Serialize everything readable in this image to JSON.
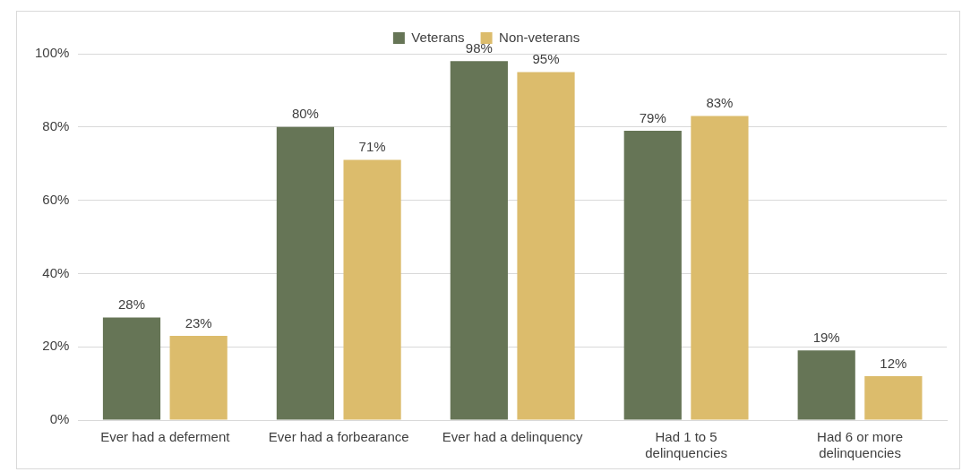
{
  "chart_data": {
    "type": "bar",
    "categories": [
      "Ever had a deferment",
      "Ever had a forbearance",
      "Ever had a delinquency",
      "Had 1 to 5 delinquencies",
      "Had 6 or more delinquencies"
    ],
    "series": [
      {
        "name": "Veterans",
        "color": "#667556",
        "values": [
          28,
          80,
          98,
          79,
          19
        ]
      },
      {
        "name": "Non-veterans",
        "color": "#dcbc6c",
        "values": [
          23,
          71,
          95,
          83,
          12
        ]
      }
    ],
    "value_labels": [
      [
        "28%",
        "80%",
        "98%",
        "79%",
        "19%"
      ],
      [
        "23%",
        "71%",
        "95%",
        "83%",
        "12%"
      ]
    ],
    "ylim": [
      0,
      100
    ],
    "yticks": [
      {
        "value": 0,
        "label": "0%"
      },
      {
        "value": 20,
        "label": "20%"
      },
      {
        "value": 40,
        "label": "40%"
      },
      {
        "value": 60,
        "label": "60%"
      },
      {
        "value": 80,
        "label": "80%"
      },
      {
        "value": 100,
        "label": "100%"
      }
    ],
    "grid": "y",
    "legend": "top"
  }
}
